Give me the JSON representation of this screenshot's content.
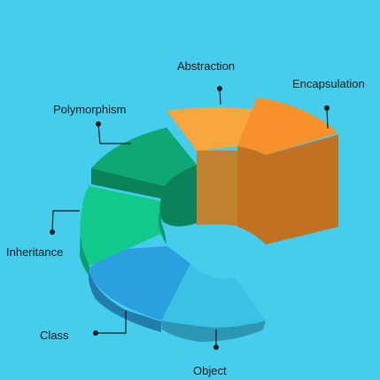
{
  "colors": {
    "background": "#45CDEE",
    "abstraction": "#F7A73E",
    "encapsulation": "#F6912B",
    "polymorphism": "#0EA874",
    "inheritance": "#10C98B",
    "class": "#2BA0DE",
    "object": "#39C2E6",
    "leader_line": "#1a1a1a"
  },
  "diagram": {
    "segments": [
      {
        "id": "abstraction",
        "label": "Abstraction"
      },
      {
        "id": "encapsulation",
        "label": "Encapsulation"
      },
      {
        "id": "polymorphism",
        "label": "Polymorphism"
      },
      {
        "id": "inheritance",
        "label": "Inheritance"
      },
      {
        "id": "class",
        "label": "Class"
      },
      {
        "id": "object",
        "label": "Object"
      }
    ]
  }
}
